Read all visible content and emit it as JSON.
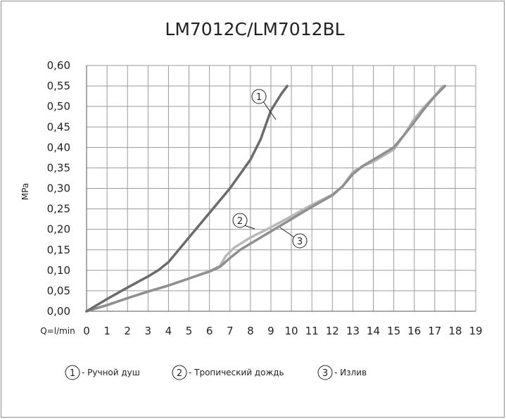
{
  "chart_data": {
    "type": "line",
    "title": "LM7012C/LM7012BL",
    "xlabel": "Q=l/min",
    "ylabel": "MPa",
    "xlim": [
      0,
      19
    ],
    "ylim": [
      0,
      0.6
    ],
    "grid": true,
    "x_ticks": [
      "0",
      "1",
      "2",
      "3",
      "4",
      "5",
      "6",
      "7",
      "8",
      "9",
      "10",
      "11",
      "12",
      "13",
      "14",
      "15",
      "16",
      "17",
      "18",
      "19"
    ],
    "y_ticks": [
      "0,00",
      "0,05",
      "0,10",
      "0,15",
      "0,20",
      "0,25",
      "0,30",
      "0,35",
      "0,40",
      "0,45",
      "0,50",
      "0,55",
      "0,60"
    ],
    "series": [
      {
        "name": "Ручной душ",
        "marker": "1",
        "color": "#6b6b6b",
        "x": [
          0,
          1,
          2,
          3,
          3.5,
          4,
          5,
          6,
          7,
          8,
          8.5,
          9,
          9.5,
          9.8
        ],
        "y": [
          0,
          0.03,
          0.058,
          0.085,
          0.1,
          0.12,
          0.18,
          0.24,
          0.3,
          0.37,
          0.42,
          0.49,
          0.53,
          0.55
        ]
      },
      {
        "name": "Тропический дождь",
        "marker": "2",
        "color": "#b8b8b8",
        "x": [
          0,
          1,
          2,
          3,
          4,
          5,
          6,
          6.5,
          6.8,
          7.2,
          8,
          9,
          10,
          11,
          12,
          12.5,
          13,
          13.5,
          14,
          14.5,
          15,
          15.5,
          16,
          16.5,
          17,
          17.4
        ],
        "y": [
          0,
          0.015,
          0.032,
          0.048,
          0.063,
          0.08,
          0.098,
          0.11,
          0.135,
          0.155,
          0.18,
          0.205,
          0.232,
          0.26,
          0.285,
          0.305,
          0.34,
          0.355,
          0.365,
          0.38,
          0.395,
          0.43,
          0.47,
          0.5,
          0.525,
          0.55
        ]
      },
      {
        "name": "Излив",
        "marker": "3",
        "color": "#8f8f8f",
        "x": [
          0,
          1,
          2,
          3,
          4,
          5,
          6,
          6.5,
          7,
          7.5,
          8,
          9,
          10,
          11,
          12,
          12.5,
          13,
          13.5,
          14,
          14.5,
          15,
          15.5,
          16,
          16.5,
          17,
          17.5
        ],
        "y": [
          0,
          0.015,
          0.032,
          0.048,
          0.063,
          0.08,
          0.097,
          0.108,
          0.13,
          0.15,
          0.165,
          0.195,
          0.225,
          0.255,
          0.283,
          0.305,
          0.335,
          0.355,
          0.37,
          0.385,
          0.4,
          0.43,
          0.462,
          0.495,
          0.525,
          0.55
        ]
      }
    ],
    "legend": [
      {
        "marker": "1",
        "text": "- Ручной душ"
      },
      {
        "marker": "2",
        "text": "- Тропический дождь"
      },
      {
        "marker": "3",
        "text": "- Излив"
      }
    ],
    "legend_position": "bottom"
  }
}
